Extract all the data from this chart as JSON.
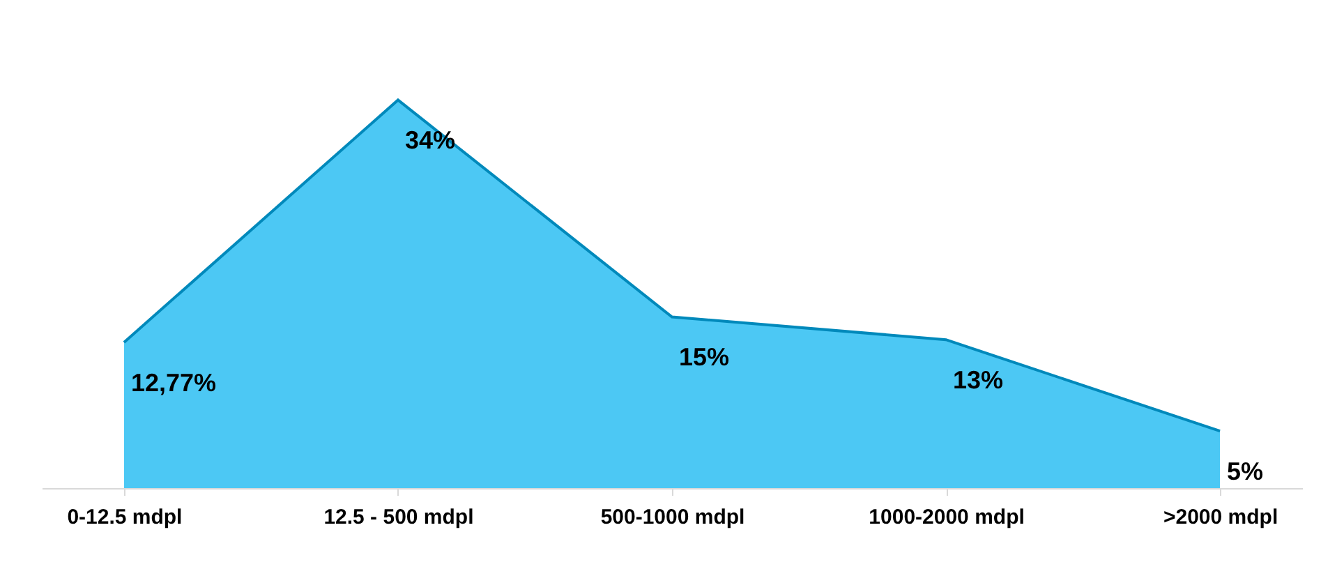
{
  "chart_data": {
    "type": "area",
    "categories": [
      "0-12.5 mdpl",
      "12.5 - 500 mdpl",
      "500-1000 mdpl",
      "1000-2000 mdpl",
      ">2000 mdpl"
    ],
    "values": [
      12.77,
      34,
      15,
      13,
      5
    ],
    "color": "#00b0f0",
    "value_labels": [
      "12,77%",
      "34%",
      "15%",
      "13%",
      "5%"
    ],
    "grid": false
  }
}
